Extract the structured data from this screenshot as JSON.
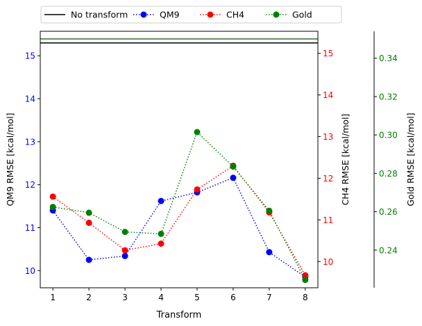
{
  "chart_data": {
    "type": "line",
    "xlabel": "Transform",
    "x": [
      1,
      2,
      3,
      4,
      5,
      6,
      7,
      8
    ],
    "xticks": [
      "1",
      "2",
      "3",
      "4",
      "5",
      "6",
      "7",
      "8"
    ],
    "xlim": [
      0.65,
      8.35
    ],
    "axes": {
      "qm9": {
        "label": "QM9 RMSE [kcal/mol]",
        "color": "#0000ff",
        "lim": [
          9.6,
          15.57
        ],
        "ticks": [
          10,
          11,
          12,
          13,
          14,
          15
        ],
        "tick_labels": [
          "10",
          "11",
          "12",
          "13",
          "14",
          "15"
        ]
      },
      "ch4": {
        "label": "CH4 RMSE [kcal/mol]",
        "color": "#ff0000",
        "lim": [
          9.37,
          15.53
        ],
        "ticks": [
          10,
          11,
          12,
          13,
          14,
          15
        ],
        "tick_labels": [
          "10",
          "11",
          "12",
          "13",
          "14",
          "15"
        ]
      },
      "gold": {
        "label": "Gold RMSE [kcal/mol]",
        "color": "#008000",
        "lim": [
          0.2204,
          0.354
        ],
        "ticks": [
          0.24,
          0.26,
          0.28,
          0.3,
          0.32,
          0.34
        ],
        "tick_labels": [
          "0.24",
          "0.26",
          "0.28",
          "0.30",
          "0.32",
          "0.34"
        ]
      }
    },
    "series": [
      {
        "name": "QM9",
        "axis": "qm9",
        "color": "#0000ff",
        "values": [
          11.4,
          10.25,
          10.34,
          11.62,
          11.82,
          12.16,
          10.43,
          9.85
        ]
      },
      {
        "name": "CH4",
        "axis": "ch4",
        "color": "#ff0000",
        "values": [
          11.56,
          10.93,
          10.27,
          10.43,
          11.73,
          12.3,
          11.18,
          9.67
        ]
      },
      {
        "name": "Gold",
        "axis": "gold",
        "color": "#008000",
        "values": [
          0.2625,
          0.2595,
          0.2495,
          0.2485,
          0.3015,
          0.2835,
          0.2605,
          0.2245
        ]
      }
    ],
    "reference_lines": [
      {
        "name": "No transform",
        "color": "#000000",
        "axis": "qm9",
        "value": 15.3
      },
      {
        "color": "#2e6b2e",
        "axis": "gold",
        "value": 0.35
      }
    ],
    "legend": {
      "placement": "top",
      "entries": [
        {
          "label": "No transform",
          "style": "solid",
          "color": "#000000"
        },
        {
          "label": "QM9",
          "style": "dotted-marker",
          "color": "#0000ff"
        },
        {
          "label": "CH4",
          "style": "dotted-marker",
          "color": "#ff0000"
        },
        {
          "label": "Gold",
          "style": "dotted-marker",
          "color": "#008000"
        }
      ]
    },
    "grid": false
  }
}
